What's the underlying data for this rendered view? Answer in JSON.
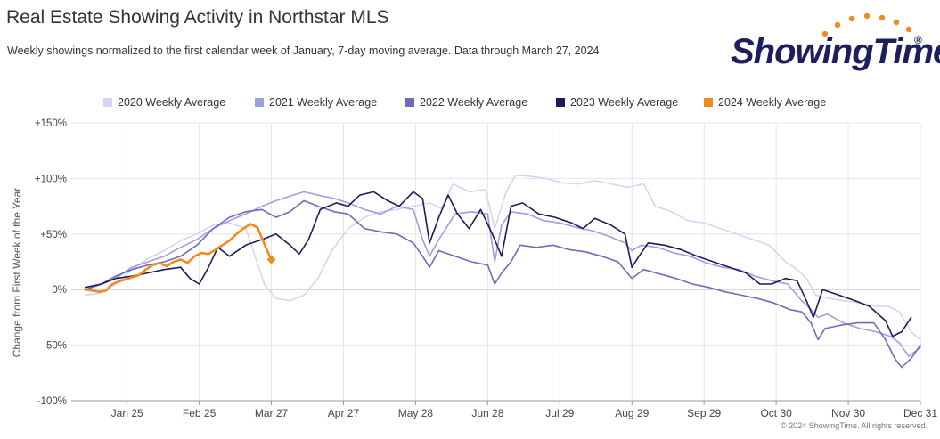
{
  "title": "Real Estate Showing Activity in Northstar MLS",
  "subtitle": "Weekly showings normalized to the first calendar week of January, 7-day moving average. Data through March 27, 2024",
  "logo": {
    "text": "ShowingTime",
    "reg": "®"
  },
  "copyright": "© 2024 ShowingTime. All rights reserved.",
  "colors": {
    "s2020": "#d4d4f5",
    "s2021": "#9e9ee2",
    "s2022": "#6d6dbc",
    "s2023": "#1c1c5a",
    "s2024": "#f28a1e",
    "grid": "#e6e6e6",
    "zero": "#c8c8c8"
  },
  "chart_data": {
    "type": "line",
    "title": "Real Estate Showing Activity in Northstar MLS",
    "subtitle": "Weekly showings normalized to the first calendar week of January, 7-day moving average. Data through March 27, 2024",
    "xlabel": "",
    "ylabel": "Change from First Week of the Year",
    "x_unit": "day of year",
    "xlim": [
      1,
      366
    ],
    "ylim": [
      -100,
      150
    ],
    "y_ticks": [
      -100,
      -50,
      0,
      50,
      100,
      150
    ],
    "y_tick_labels": [
      "-100%",
      "-50%",
      "0%",
      "+50%",
      "+100%",
      "+150%"
    ],
    "x_ticks": [
      25,
      56,
      87,
      118,
      149,
      180,
      211,
      242,
      273,
      304,
      335,
      366
    ],
    "x_tick_labels": [
      "Jan 25",
      "Feb 25",
      "Mar 27",
      "Apr 27",
      "May 28",
      "Jun 28",
      "Jul 29",
      "Aug 29",
      "Sep 29",
      "Oct 30",
      "Nov 30",
      "Dec 31"
    ],
    "grid": "vertical and horizontal",
    "legend_position": "top-center",
    "series": [
      {
        "name": "2020 Weekly Average",
        "color_key": "s2020",
        "points": [
          [
            7,
            -5
          ],
          [
            14,
            -3
          ],
          [
            20,
            5
          ],
          [
            27,
            18
          ],
          [
            34,
            28
          ],
          [
            41,
            35
          ],
          [
            48,
            44
          ],
          [
            55,
            50
          ],
          [
            62,
            58
          ],
          [
            69,
            60
          ],
          [
            76,
            55
          ],
          [
            80,
            30
          ],
          [
            84,
            5
          ],
          [
            89,
            -8
          ],
          [
            95,
            -10
          ],
          [
            101,
            -5
          ],
          [
            107,
            10
          ],
          [
            113,
            35
          ],
          [
            120,
            55
          ],
          [
            127,
            65
          ],
          [
            134,
            70
          ],
          [
            141,
            72
          ],
          [
            148,
            75
          ],
          [
            155,
            78
          ],
          [
            160,
            73
          ],
          [
            165,
            95
          ],
          [
            172,
            88
          ],
          [
            179,
            90
          ],
          [
            183,
            55
          ],
          [
            188,
            88
          ],
          [
            192,
            103
          ],
          [
            198,
            102
          ],
          [
            205,
            100
          ],
          [
            212,
            96
          ],
          [
            219,
            95
          ],
          [
            226,
            98
          ],
          [
            233,
            95
          ],
          [
            240,
            92
          ],
          [
            247,
            95
          ],
          [
            252,
            75
          ],
          [
            259,
            70
          ],
          [
            266,
            62
          ],
          [
            273,
            60
          ],
          [
            280,
            55
          ],
          [
            287,
            50
          ],
          [
            294,
            45
          ],
          [
            301,
            40
          ],
          [
            308,
            25
          ],
          [
            313,
            18
          ],
          [
            317,
            10
          ],
          [
            321,
            -5
          ],
          [
            327,
            -8
          ],
          [
            333,
            -10
          ],
          [
            340,
            -12
          ],
          [
            347,
            -15
          ],
          [
            352,
            -15
          ],
          [
            357,
            -20
          ],
          [
            362,
            -38
          ],
          [
            366,
            -45
          ]
        ]
      },
      {
        "name": "2021 Weekly Average",
        "color_key": "s2021",
        "points": [
          [
            7,
            0
          ],
          [
            14,
            5
          ],
          [
            20,
            10
          ],
          [
            27,
            20
          ],
          [
            34,
            25
          ],
          [
            41,
            30
          ],
          [
            48,
            38
          ],
          [
            55,
            45
          ],
          [
            62,
            55
          ],
          [
            69,
            62
          ],
          [
            76,
            68
          ],
          [
            83,
            75
          ],
          [
            89,
            80
          ],
          [
            95,
            84
          ],
          [
            101,
            88
          ],
          [
            107,
            85
          ],
          [
            114,
            82
          ],
          [
            120,
            78
          ],
          [
            127,
            72
          ],
          [
            134,
            68
          ],
          [
            141,
            75
          ],
          [
            148,
            72
          ],
          [
            152,
            45
          ],
          [
            155,
            30
          ],
          [
            159,
            45
          ],
          [
            166,
            68
          ],
          [
            173,
            70
          ],
          [
            180,
            68
          ],
          [
            183,
            25
          ],
          [
            186,
            58
          ],
          [
            190,
            70
          ],
          [
            197,
            68
          ],
          [
            204,
            62
          ],
          [
            211,
            60
          ],
          [
            218,
            56
          ],
          [
            225,
            53
          ],
          [
            232,
            48
          ],
          [
            239,
            42
          ],
          [
            242,
            35
          ],
          [
            246,
            40
          ],
          [
            253,
            38
          ],
          [
            260,
            33
          ],
          [
            267,
            30
          ],
          [
            274,
            24
          ],
          [
            281,
            20
          ],
          [
            288,
            18
          ],
          [
            295,
            12
          ],
          [
            302,
            8
          ],
          [
            309,
            5
          ],
          [
            315,
            -10
          ],
          [
            319,
            -18
          ],
          [
            322,
            -25
          ],
          [
            326,
            -22
          ],
          [
            333,
            -30
          ],
          [
            340,
            -35
          ],
          [
            347,
            -38
          ],
          [
            353,
            -42
          ],
          [
            357,
            -48
          ],
          [
            361,
            -60
          ],
          [
            366,
            -52
          ]
        ]
      },
      {
        "name": "2022 Weekly Average",
        "color_key": "s2022",
        "points": [
          [
            7,
            0
          ],
          [
            14,
            5
          ],
          [
            20,
            12
          ],
          [
            27,
            18
          ],
          [
            34,
            22
          ],
          [
            41,
            25
          ],
          [
            48,
            30
          ],
          [
            55,
            40
          ],
          [
            62,
            55
          ],
          [
            69,
            65
          ],
          [
            76,
            70
          ],
          [
            83,
            72
          ],
          [
            89,
            65
          ],
          [
            95,
            70
          ],
          [
            101,
            80
          ],
          [
            107,
            75
          ],
          [
            114,
            70
          ],
          [
            120,
            68
          ],
          [
            127,
            55
          ],
          [
            134,
            52
          ],
          [
            141,
            50
          ],
          [
            148,
            42
          ],
          [
            152,
            30
          ],
          [
            155,
            20
          ],
          [
            159,
            35
          ],
          [
            166,
            30
          ],
          [
            173,
            25
          ],
          [
            180,
            22
          ],
          [
            183,
            5
          ],
          [
            186,
            15
          ],
          [
            190,
            25
          ],
          [
            194,
            40
          ],
          [
            201,
            38
          ],
          [
            208,
            40
          ],
          [
            215,
            36
          ],
          [
            222,
            34
          ],
          [
            229,
            30
          ],
          [
            236,
            25
          ],
          [
            242,
            10
          ],
          [
            247,
            18
          ],
          [
            254,
            14
          ],
          [
            261,
            10
          ],
          [
            268,
            5
          ],
          [
            275,
            2
          ],
          [
            282,
            -2
          ],
          [
            289,
            -5
          ],
          [
            296,
            -8
          ],
          [
            303,
            -12
          ],
          [
            310,
            -18
          ],
          [
            315,
            -20
          ],
          [
            319,
            -30
          ],
          [
            322,
            -45
          ],
          [
            325,
            -35
          ],
          [
            332,
            -32
          ],
          [
            339,
            -30
          ],
          [
            346,
            -30
          ],
          [
            351,
            -45
          ],
          [
            355,
            -62
          ],
          [
            358,
            -70
          ],
          [
            362,
            -62
          ],
          [
            366,
            -50
          ]
        ]
      },
      {
        "name": "2023 Weekly Average",
        "color_key": "s2023",
        "points": [
          [
            7,
            2
          ],
          [
            14,
            5
          ],
          [
            20,
            10
          ],
          [
            27,
            12
          ],
          [
            34,
            15
          ],
          [
            41,
            18
          ],
          [
            48,
            20
          ],
          [
            52,
            10
          ],
          [
            56,
            5
          ],
          [
            60,
            20
          ],
          [
            64,
            38
          ],
          [
            69,
            30
          ],
          [
            76,
            40
          ],
          [
            83,
            45
          ],
          [
            89,
            50
          ],
          [
            95,
            40
          ],
          [
            99,
            32
          ],
          [
            103,
            45
          ],
          [
            108,
            72
          ],
          [
            115,
            78
          ],
          [
            120,
            75
          ],
          [
            125,
            85
          ],
          [
            131,
            88
          ],
          [
            137,
            80
          ],
          [
            142,
            75
          ],
          [
            148,
            88
          ],
          [
            152,
            82
          ],
          [
            155,
            42
          ],
          [
            159,
            65
          ],
          [
            163,
            85
          ],
          [
            167,
            68
          ],
          [
            172,
            55
          ],
          [
            177,
            72
          ],
          [
            182,
            50
          ],
          [
            186,
            30
          ],
          [
            190,
            75
          ],
          [
            195,
            78
          ],
          [
            202,
            68
          ],
          [
            209,
            65
          ],
          [
            216,
            60
          ],
          [
            221,
            55
          ],
          [
            226,
            64
          ],
          [
            233,
            58
          ],
          [
            239,
            50
          ],
          [
            242,
            20
          ],
          [
            245,
            30
          ],
          [
            249,
            42
          ],
          [
            256,
            40
          ],
          [
            263,
            36
          ],
          [
            270,
            30
          ],
          [
            277,
            25
          ],
          [
            284,
            20
          ],
          [
            291,
            15
          ],
          [
            297,
            5
          ],
          [
            302,
            5
          ],
          [
            308,
            10
          ],
          [
            313,
            8
          ],
          [
            317,
            -10
          ],
          [
            320,
            -25
          ],
          [
            324,
            0
          ],
          [
            331,
            -5
          ],
          [
            338,
            -10
          ],
          [
            344,
            -15
          ],
          [
            351,
            -28
          ],
          [
            354,
            -42
          ],
          [
            358,
            -38
          ],
          [
            362,
            -25
          ]
        ]
      },
      {
        "name": "2024 Weekly Average",
        "color_key": "s2024",
        "points": [
          [
            7,
            0
          ],
          [
            10,
            -1
          ],
          [
            13,
            -2
          ],
          [
            16,
            -1
          ],
          [
            18,
            4
          ],
          [
            21,
            7
          ],
          [
            24,
            9
          ],
          [
            27,
            11
          ],
          [
            30,
            13
          ],
          [
            33,
            18
          ],
          [
            36,
            22
          ],
          [
            39,
            24
          ],
          [
            42,
            21
          ],
          [
            45,
            25
          ],
          [
            48,
            27
          ],
          [
            51,
            24
          ],
          [
            54,
            30
          ],
          [
            57,
            33
          ],
          [
            60,
            32
          ],
          [
            63,
            36
          ],
          [
            66,
            40
          ],
          [
            69,
            44
          ],
          [
            72,
            50
          ],
          [
            75,
            55
          ],
          [
            78,
            59
          ],
          [
            81,
            56
          ],
          [
            83,
            46
          ],
          [
            85,
            36
          ],
          [
            87,
            27
          ]
        ],
        "markers": true
      }
    ]
  }
}
